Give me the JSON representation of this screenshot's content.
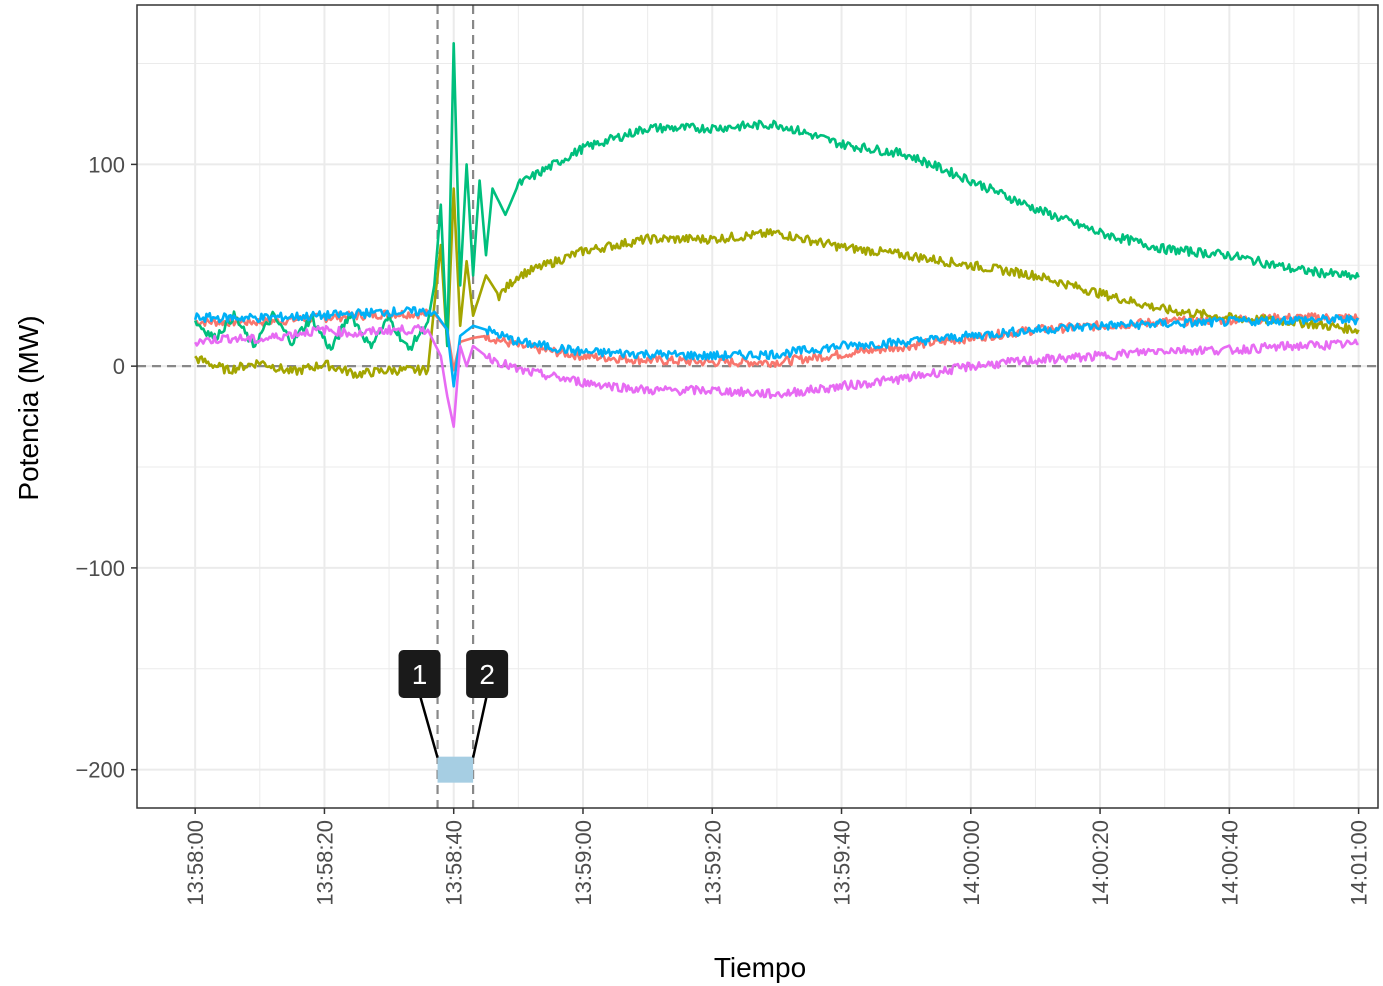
{
  "chart_data": {
    "type": "line",
    "title": "",
    "xlabel": "Tiempo",
    "ylabel": "Potencia (MW)",
    "x_range_seconds": [
      0,
      180
    ],
    "x_labels_note": "x values are seconds after 13:58:00",
    "xlim": [
      "13:57:51",
      "14:01:03"
    ],
    "ylim": [
      -219,
      179
    ],
    "y_ticks": [
      100,
      0,
      -100,
      -200
    ],
    "y_tick_labels": [
      "100",
      "0",
      "−100",
      "−200"
    ],
    "x_ticks": [
      "13:58:00",
      "13:58:20",
      "13:58:40",
      "13:59:00",
      "13:59:20",
      "13:59:40",
      "14:00:00",
      "14:00:20",
      "14:00:40",
      "14:01:00"
    ],
    "grid": true,
    "legend": "none",
    "reference_lines": {
      "horizontal_y": 0,
      "vertical_x": [
        "13:58:37.5",
        "13:58:43.0"
      ]
    },
    "event_marker": {
      "x_start": "13:58:37.5",
      "x_end": "13:58:43.0",
      "y": -200,
      "color": "#a6cee3"
    },
    "annotations": [
      {
        "label": "1",
        "x": "13:58:37.5"
      },
      {
        "label": "2",
        "x": "13:58:43.0"
      }
    ],
    "series": [
      {
        "color": "#f8766d",
        "x": [
          "13:58:00",
          "13:58:10",
          "13:58:20",
          "13:58:30",
          "13:58:37",
          "13:58:39",
          "13:58:40",
          "13:58:41",
          "13:58:43",
          "13:58:45",
          "13:58:50",
          "13:59:00",
          "13:59:10",
          "13:59:20",
          "13:59:30",
          "13:59:40",
          "13:59:50",
          "14:00:00",
          "14:00:10",
          "14:00:20",
          "14:00:30",
          "14:00:40",
          "14:00:50",
          "14:01:00"
        ],
        "y": [
          22,
          22,
          24,
          26,
          26,
          18,
          -2,
          12,
          14,
          15,
          10,
          5,
          3,
          2,
          2,
          6,
          10,
          14,
          18,
          20,
          22,
          23,
          24,
          24
        ]
      },
      {
        "color": "#a3a500",
        "x": [
          "13:58:00",
          "13:58:05",
          "13:58:10",
          "13:58:15",
          "13:58:20",
          "13:58:25",
          "13:58:30",
          "13:58:36",
          "13:58:37",
          "13:58:38",
          "13:58:39",
          "13:58:40",
          "13:58:41",
          "13:58:42",
          "13:58:43",
          "13:58:45",
          "13:58:47",
          "13:58:50",
          "13:59:00",
          "13:59:10",
          "13:59:20",
          "13:59:30",
          "13:59:40",
          "13:59:50",
          "14:00:00",
          "14:00:10",
          "14:00:20",
          "14:00:30",
          "14:00:40",
          "14:00:50",
          "14:01:00"
        ],
        "y": [
          4,
          -2,
          2,
          -3,
          1,
          -4,
          -2,
          -2,
          30,
          60,
          10,
          88,
          20,
          52,
          25,
          45,
          35,
          45,
          57,
          63,
          63,
          66,
          59,
          55,
          50,
          45,
          36,
          28,
          24,
          22,
          18
        ]
      },
      {
        "color": "#00bf7d",
        "x": [
          "13:58:00",
          "13:58:03",
          "13:58:06",
          "13:58:09",
          "13:58:12",
          "13:58:15",
          "13:58:18",
          "13:58:21",
          "13:58:24",
          "13:58:27",
          "13:58:30",
          "13:58:33",
          "13:58:36",
          "13:58:37",
          "13:58:38",
          "13:58:39",
          "13:58:40",
          "13:58:41",
          "13:58:42",
          "13:58:43",
          "13:58:44",
          "13:58:45",
          "13:58:46",
          "13:58:48",
          "13:58:50",
          "13:59:00",
          "13:59:10",
          "13:59:20",
          "13:59:30",
          "13:59:40",
          "13:59:50",
          "14:00:00",
          "14:00:10",
          "14:00:20",
          "14:00:30",
          "14:00:40",
          "14:00:50",
          "14:01:00"
        ],
        "y": [
          22,
          14,
          25,
          10,
          25,
          12,
          24,
          8,
          26,
          10,
          24,
          8,
          22,
          40,
          80,
          10,
          160,
          40,
          100,
          45,
          92,
          55,
          88,
          75,
          90,
          108,
          118,
          118,
          120,
          110,
          105,
          92,
          78,
          66,
          58,
          55,
          48,
          44
        ]
      },
      {
        "color": "#00b0f6",
        "x": [
          "13:58:00",
          "13:58:10",
          "13:58:20",
          "13:58:30",
          "13:58:37",
          "13:58:39",
          "13:58:40",
          "13:58:41",
          "13:58:43",
          "13:58:45",
          "13:58:50",
          "13:59:00",
          "13:59:10",
          "13:59:20",
          "13:59:30",
          "13:59:40",
          "13:59:50",
          "14:00:00",
          "14:00:10",
          "14:00:20",
          "14:00:30",
          "14:00:40",
          "14:00:50",
          "14:01:00"
        ],
        "y": [
          24,
          24,
          25,
          27,
          27,
          18,
          -10,
          15,
          20,
          18,
          12,
          7,
          6,
          5,
          6,
          10,
          12,
          15,
          18,
          20,
          21,
          22,
          23,
          23
        ]
      },
      {
        "color": "#e76bf3",
        "x": [
          "13:58:00",
          "13:58:05",
          "13:58:10",
          "13:58:15",
          "13:58:20",
          "13:58:25",
          "13:58:30",
          "13:58:36",
          "13:58:38",
          "13:58:39",
          "13:58:40",
          "13:58:41",
          "13:58:42",
          "13:58:43",
          "13:58:45",
          "13:58:50",
          "13:59:00",
          "13:59:10",
          "13:59:20",
          "13:59:30",
          "13:59:40",
          "13:59:50",
          "14:00:00",
          "14:00:10",
          "14:00:20",
          "14:00:30",
          "14:00:40",
          "14:00:50",
          "14:01:00"
        ],
        "y": [
          12,
          14,
          13,
          16,
          18,
          16,
          18,
          18,
          5,
          -15,
          -30,
          10,
          0,
          10,
          5,
          -2,
          -8,
          -12,
          -12,
          -14,
          -10,
          -6,
          0,
          3,
          5,
          8,
          8,
          10,
          11
        ]
      }
    ]
  }
}
